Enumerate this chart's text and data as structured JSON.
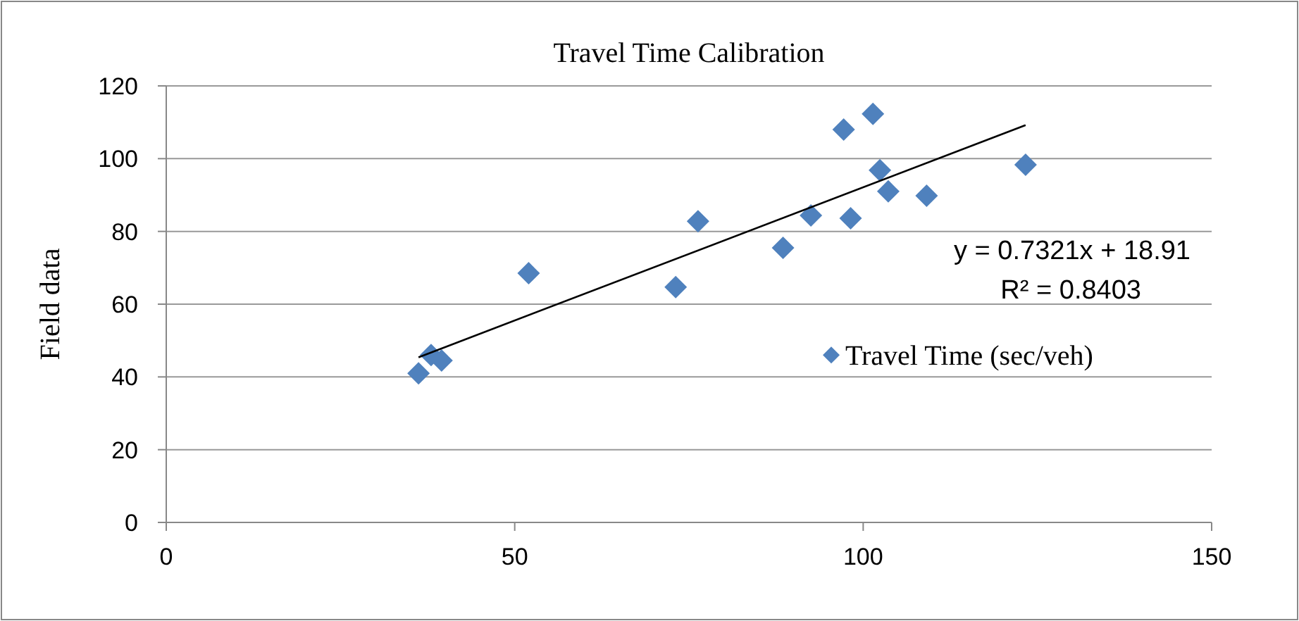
{
  "chart_data": {
    "type": "scatter",
    "title": "Travel Time Calibration",
    "ylabel": "Field data",
    "xlim": [
      0,
      150
    ],
    "xticks": [
      0,
      50,
      100,
      150
    ],
    "ylim": [
      0,
      120
    ],
    "yticks": [
      0,
      20,
      40,
      60,
      80,
      100,
      120
    ],
    "grid": "y",
    "legend": "right",
    "marker": "diamond",
    "series": [
      {
        "name": "Travel Time (sec/veh)",
        "color": "#4f81bd",
        "x": [
          36.2,
          38.0,
          39.5,
          52.0,
          73.1,
          76.3,
          88.5,
          92.5,
          98.2,
          97.2,
          101.4,
          102.4,
          103.6,
          109.1,
          123.3
        ],
        "values": [
          41.0,
          46.0,
          44.5,
          68.5,
          64.7,
          82.8,
          75.5,
          84.4,
          83.6,
          108,
          112.3,
          96.8,
          91,
          89.8,
          98.3
        ]
      },
      {
        "type": "line",
        "color": "#000000",
        "marker": "none",
        "x": [
          36.2,
          123.3
        ],
        "values": [
          45.4,
          109.2
        ]
      }
    ],
    "annotations": [
      "y = 0.7321x + 18.91",
      "R² = 0.8403"
    ]
  }
}
